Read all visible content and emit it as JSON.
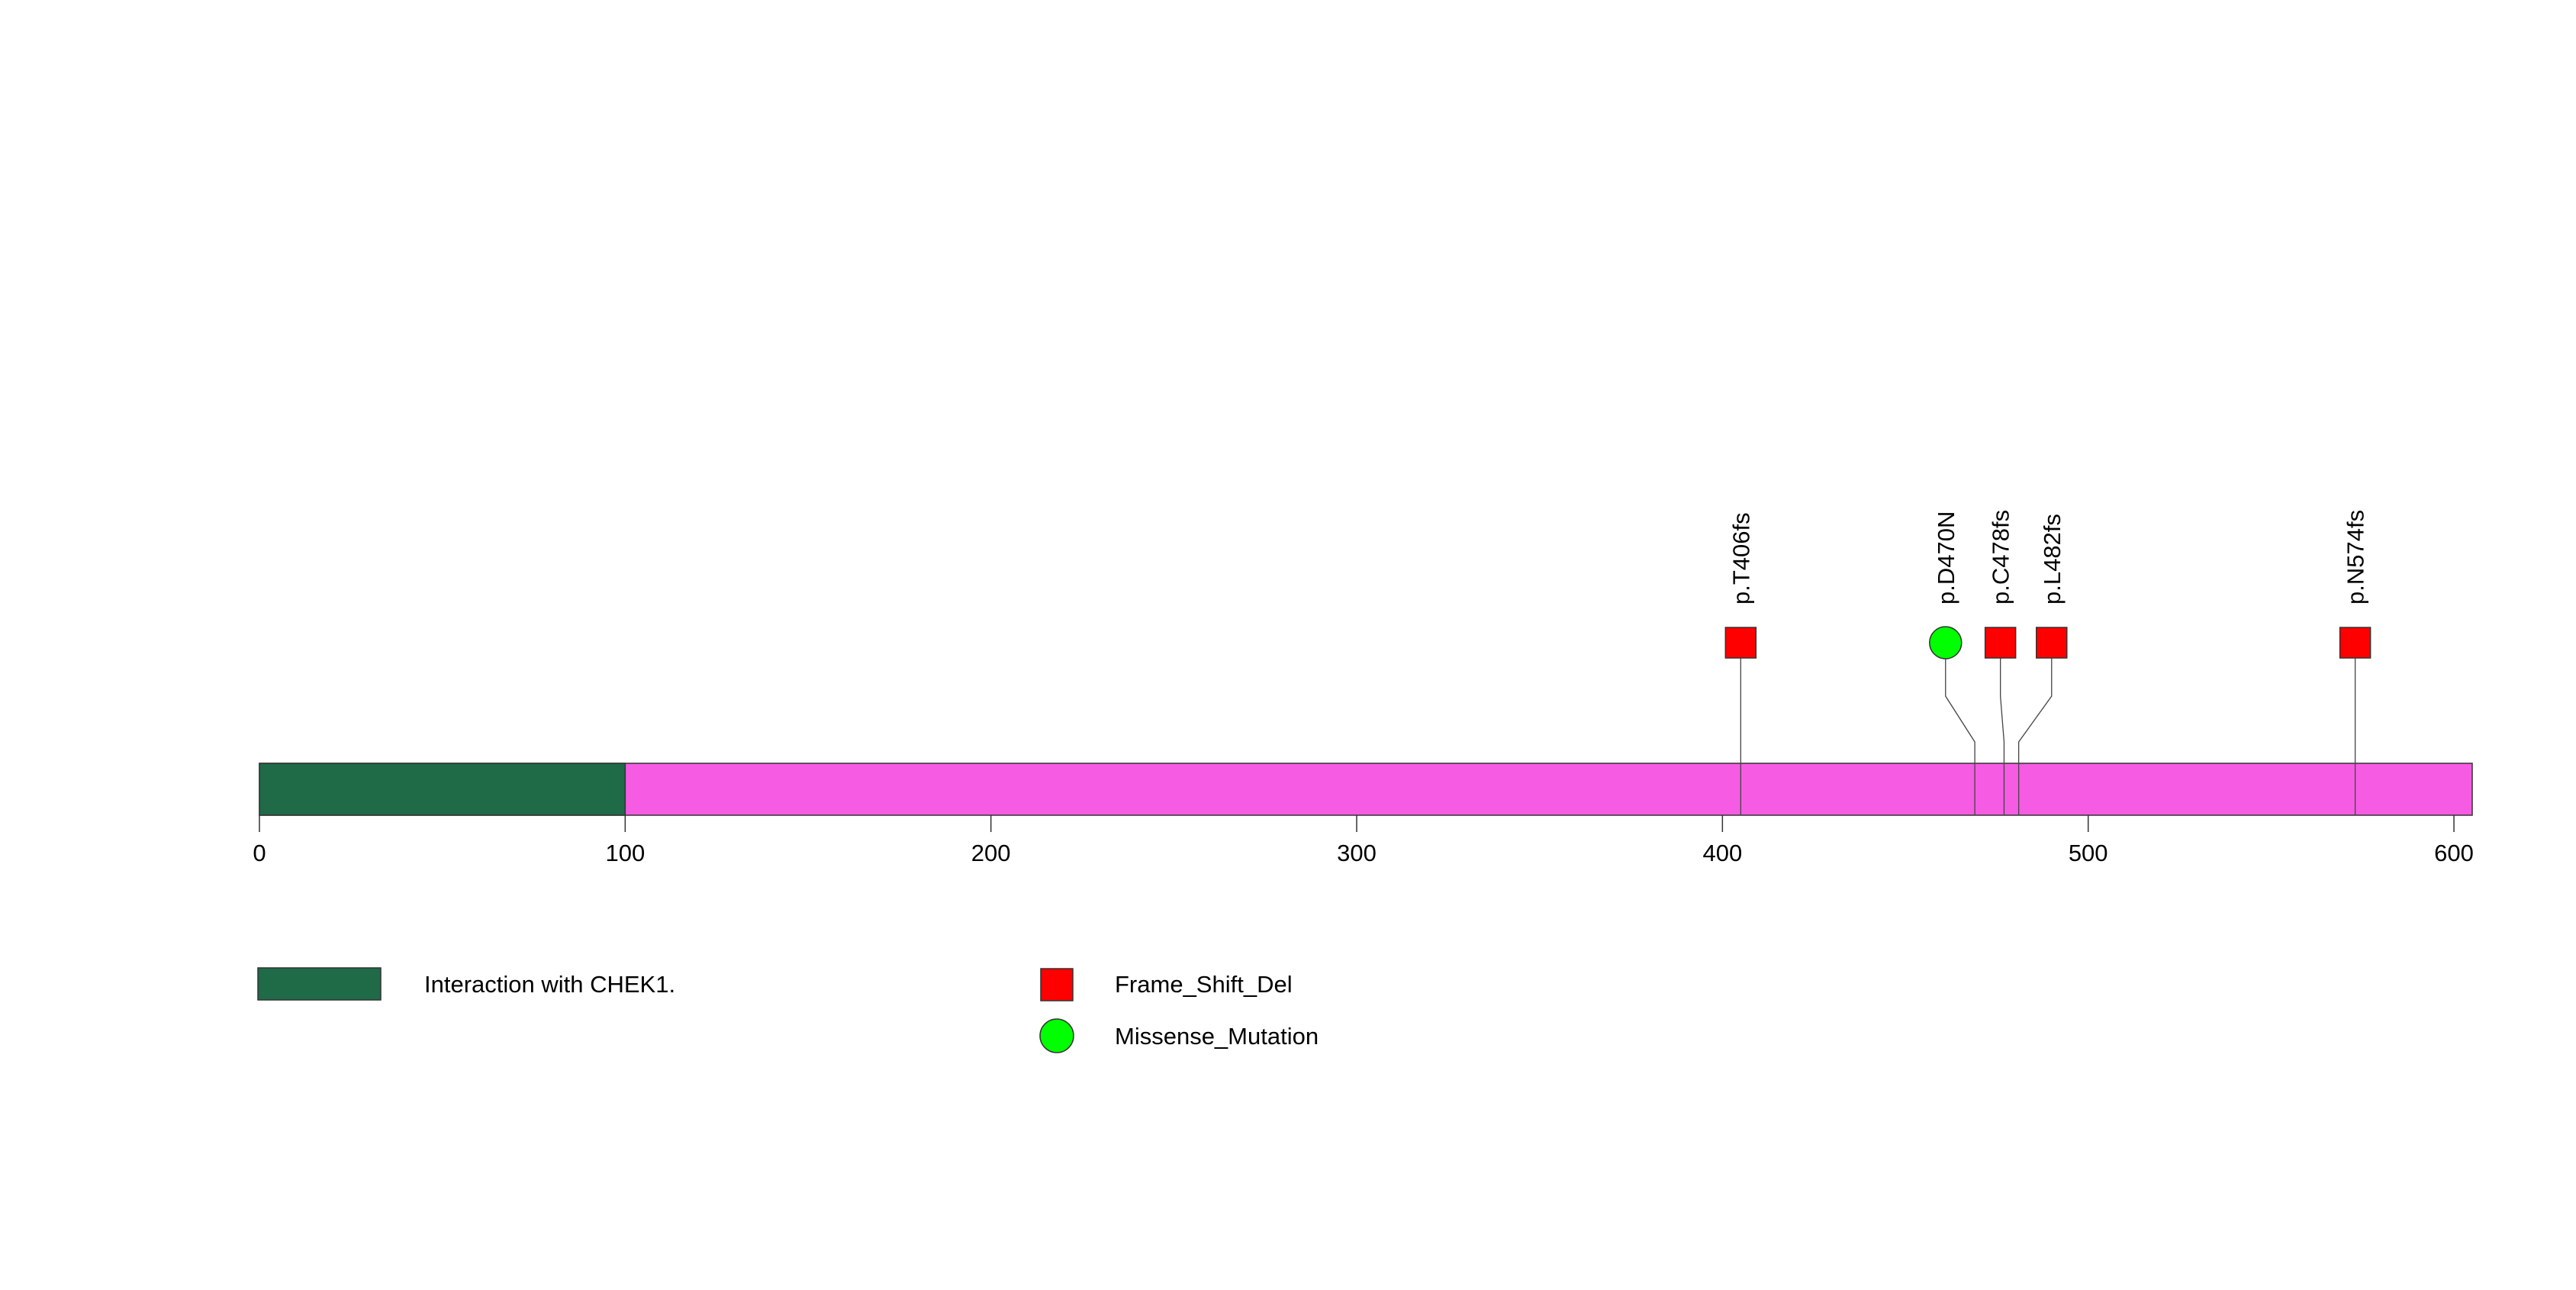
{
  "protein": {
    "length": 605,
    "color": "#F65BE3"
  },
  "axis": {
    "ticks": [
      0,
      100,
      200,
      300,
      400,
      500,
      600
    ],
    "tick_labels": [
      "0",
      "100",
      "200",
      "300",
      "400",
      "500",
      "600"
    ]
  },
  "domains": [
    {
      "label": "Interaction with CHEK1.",
      "start": 0,
      "end": 100,
      "color": "#1F6A47"
    }
  ],
  "mutations": [
    {
      "label": "p.T406fs",
      "position": 405,
      "shown_at": 405,
      "type": "Frame_Shift_Del"
    },
    {
      "label": "p.D470N",
      "position": 469,
      "shown_at": 461,
      "type": "Missense_Mutation"
    },
    {
      "label": "p.C478fs",
      "position": 477,
      "shown_at": 476,
      "type": "Frame_Shift_Del"
    },
    {
      "label": "p.L482fs",
      "position": 481,
      "shown_at": 490,
      "type": "Frame_Shift_Del"
    },
    {
      "label": "p.N574fs",
      "position": 573,
      "shown_at": 573,
      "type": "Frame_Shift_Del"
    }
  ],
  "mutation_types": [
    {
      "name": "Frame_Shift_Del",
      "shape": "square",
      "color": "#FF0000"
    },
    {
      "name": "Missense_Mutation",
      "shape": "circle",
      "color": "#00FF00"
    }
  ],
  "legend": {
    "domain_label": "Interaction with CHEK1.",
    "frame_shift_label": "Frame_Shift_Del",
    "missense_label": "Missense_Mutation"
  }
}
